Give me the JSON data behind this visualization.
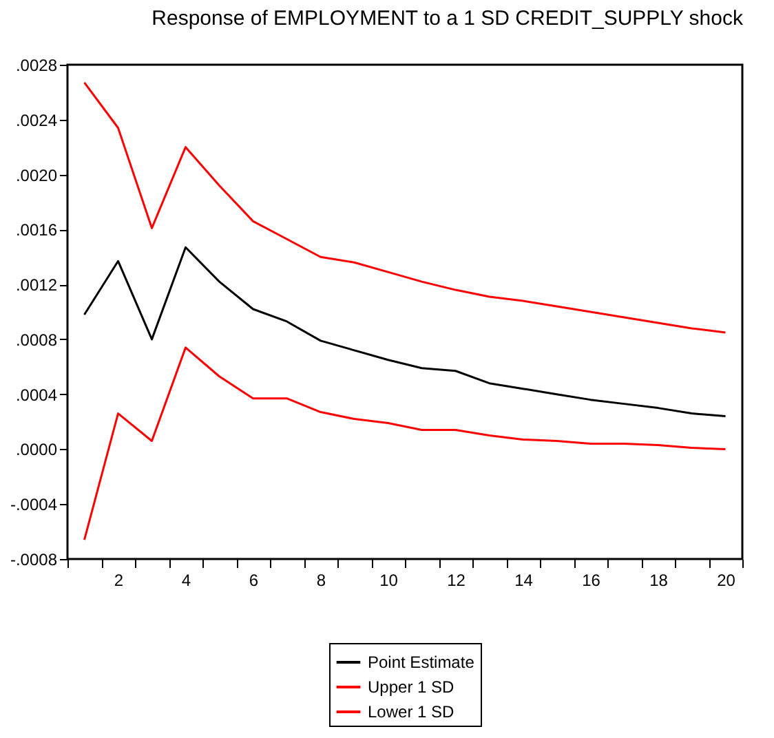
{
  "chart_data": {
    "type": "line",
    "title": "Response of EMPLOYMENT to a 1 SD CREDIT_SUPPLY shock",
    "x": [
      1,
      2,
      3,
      4,
      5,
      6,
      7,
      8,
      9,
      10,
      11,
      12,
      13,
      14,
      15,
      16,
      17,
      18,
      19,
      20
    ],
    "xlim": [
      0.5,
      20.5
    ],
    "xticks": [
      {
        "value": 0.5,
        "label": null
      },
      {
        "value": 1.5,
        "label": null
      },
      2,
      {
        "value": 2.5,
        "label": null
      },
      {
        "value": 3.5,
        "label": null
      },
      4,
      {
        "value": 4.5,
        "label": null
      },
      {
        "value": 5.5,
        "label": null
      },
      6,
      {
        "value": 6.5,
        "label": null
      },
      {
        "value": 7.5,
        "label": null
      },
      8,
      {
        "value": 8.5,
        "label": null
      },
      {
        "value": 9.5,
        "label": null
      },
      10,
      {
        "value": 10.5,
        "label": null
      },
      {
        "value": 11.5,
        "label": null
      },
      12,
      {
        "value": 12.5,
        "label": null
      },
      {
        "value": 13.5,
        "label": null
      },
      14,
      {
        "value": 14.5,
        "label": null
      },
      {
        "value": 15.5,
        "label": null
      },
      16,
      {
        "value": 16.5,
        "label": null
      },
      {
        "value": 17.5,
        "label": null
      },
      18,
      {
        "value": 18.5,
        "label": null
      },
      {
        "value": 19.5,
        "label": null
      },
      20,
      {
        "value": 20.5,
        "label": null
      }
    ],
    "ylim": [
      -0.0008,
      0.0028
    ],
    "yticks": [
      {
        "value": -0.0008,
        "label": "-.0008"
      },
      {
        "value": -0.0004,
        "label": "-.0004"
      },
      {
        "value": 0,
        "label": ".0000"
      },
      {
        "value": 0.0004,
        "label": ".0004"
      },
      {
        "value": 0.0008,
        "label": ".0008"
      },
      {
        "value": 0.0012,
        "label": ".0012"
      },
      {
        "value": 0.0016,
        "label": ".0016"
      },
      {
        "value": 0.002,
        "label": ".0020"
      },
      {
        "value": 0.0024,
        "label": ".0024"
      },
      {
        "value": 0.0028,
        "label": ".0028"
      }
    ],
    "grid": false,
    "legend": "bottom",
    "marker": "none",
    "line_style": "solid",
    "series": [
      {
        "name": "Point Estimate",
        "color": "#000000",
        "values": [
          0.00098,
          0.00137,
          0.0008,
          0.00147,
          0.00122,
          0.00102,
          0.00093,
          0.00079,
          0.00072,
          0.00065,
          0.00059,
          0.00057,
          0.00048,
          0.00044,
          0.0004,
          0.00036,
          0.00033,
          0.0003,
          0.00026,
          0.00024
        ]
      },
      {
        "name": "Upper 1 SD",
        "color": "#ff0000",
        "values": [
          0.00267,
          0.00234,
          0.00161,
          0.0022,
          0.00192,
          0.00166,
          0.00153,
          0.0014,
          0.00136,
          0.00129,
          0.00122,
          0.00116,
          0.00111,
          0.00108,
          0.00104,
          0.001,
          0.00096,
          0.00092,
          0.00088,
          0.00085
        ]
      },
      {
        "name": "Lower 1 SD",
        "color": "#ff0000",
        "values": [
          -0.00066,
          0.00026,
          6e-05,
          0.00074,
          0.00053,
          0.00037,
          0.00037,
          0.00027,
          0.00022,
          0.00019,
          0.00014,
          0.00014,
          0.0001,
          7e-05,
          6e-05,
          4e-05,
          4e-05,
          3e-05,
          1e-05,
          0
        ]
      }
    ]
  }
}
